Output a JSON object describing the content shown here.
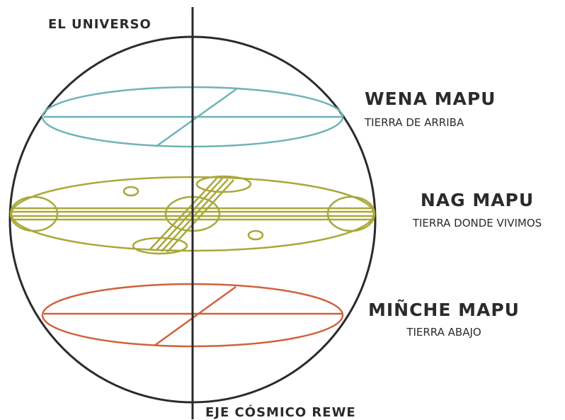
{
  "title": "EL UNIVERSO",
  "levels": [
    {
      "name": "WENA MAPU",
      "subtitle": "TIERRA DE ARRIBA"
    },
    {
      "name": "NAG MAPU",
      "subtitle": "TIERRA DONDE VIVIMOS"
    },
    {
      "name": "MIÑCHE MAPU",
      "subtitle": "TIERRA ABAJO"
    }
  ],
  "axis_label": "EJE CÓSMICO REWE"
}
